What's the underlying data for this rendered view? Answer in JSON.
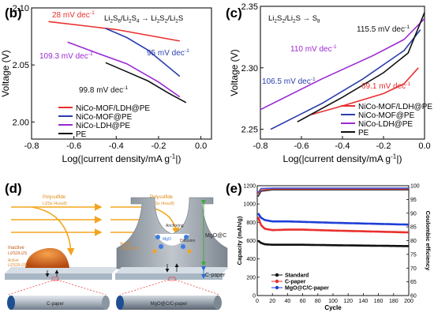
{
  "panels": {
    "b": "(b)",
    "c": "(c)",
    "d": "(d)",
    "e": "(e)"
  },
  "chart_data": [
    {
      "id": "b",
      "type": "line",
      "title": "Li2S6/Li2S4 → Li2S2/Li2S",
      "title_parts": [
        "Li",
        "2",
        "S",
        "6",
        "/Li",
        "2",
        "S",
        "4",
        " → Li",
        "2",
        "S",
        "2",
        "/Li",
        "2",
        "S"
      ],
      "xlabel": "Log(|current density/mA g-1|)",
      "xlabel_parts": [
        "Log(|current density/mA g",
        "-1",
        "|)"
      ],
      "ylabel": "Voltage (V)",
      "xlim": [
        -0.8,
        0.05
      ],
      "ylim": [
        1.985,
        2.1
      ],
      "xticks": [
        -0.8,
        -0.6,
        -0.4,
        -0.2,
        0.0
      ],
      "xtick_labels": [
        "-0.8",
        "-0.6",
        "-0.4",
        "-0.2",
        "0.0"
      ],
      "yticks": [
        2.0,
        2.05,
        2.1
      ],
      "ytick_labels": [
        "2.00",
        "2.05",
        "2.10"
      ],
      "legend_position": "bottom-left",
      "series": [
        {
          "name": "NiCo-MOF/LDH@PE",
          "color": "#e8302f",
          "x": [
            -0.72,
            -0.4,
            -0.1
          ],
          "y": [
            2.088,
            2.081,
            2.071
          ]
        },
        {
          "name": "NiCo-MOF@PE",
          "color": "#2a3fae",
          "x": [
            -0.45,
            -0.35,
            -0.25,
            -0.1
          ],
          "y": [
            2.082,
            2.074,
            2.063,
            2.04
          ]
        },
        {
          "name": "NiCo-LDH@PE",
          "color": "#9a2ad1",
          "x": [
            -0.63,
            -0.5,
            -0.35,
            -0.2,
            -0.1
          ],
          "y": [
            2.07,
            2.061,
            2.051,
            2.035,
            2.022
          ]
        },
        {
          "name": "PE",
          "color": "#111111",
          "x": [
            -0.45,
            -0.35,
            -0.25,
            -0.15,
            -0.07
          ],
          "y": [
            2.052,
            2.044,
            2.036,
            2.025,
            2.017
          ]
        }
      ],
      "annotations": [
        {
          "text": "28 mV dec-1",
          "color": "#e8302f"
        },
        {
          "text": "95 mV dec-1",
          "color": "#2a3fae"
        },
        {
          "text": "109.3 mV dec-1",
          "color": "#9a2ad1"
        },
        {
          "text": "99.8 mV dec-1",
          "color": "#111111"
        }
      ]
    },
    {
      "id": "c",
      "type": "line",
      "title": "Li2S2/Li2S → S8",
      "title_parts": [
        "Li",
        "2",
        "S",
        "2",
        "/Li",
        "2",
        "S → S",
        "8"
      ],
      "xlabel": "Log(|current density/mA g-1|)",
      "xlabel_parts": [
        "Log(|current density/mA g",
        "-1",
        "|)"
      ],
      "ylabel": "Voltage (V)",
      "xlim": [
        -0.8,
        0.0
      ],
      "ylim": [
        2.242,
        2.35
      ],
      "xticks": [
        -0.8,
        -0.6,
        -0.4,
        -0.2,
        0.0
      ],
      "xtick_labels": [
        "-0.8",
        "-0.6",
        "-0.4",
        "-0.2",
        "0.0"
      ],
      "yticks": [
        2.25,
        2.3,
        2.35
      ],
      "ytick_labels": [
        "2.25",
        "2.30",
        "2.35"
      ],
      "legend_position": "bottom-right",
      "series": [
        {
          "name": "NiCo-MOF/LDH@PE",
          "color": "#e8302f",
          "x": [
            -0.55,
            -0.4,
            -0.2,
            -0.1,
            -0.03
          ],
          "y": [
            2.262,
            2.269,
            2.279,
            2.287,
            2.3
          ]
        },
        {
          "name": "NiCo-MOF@PE",
          "color": "#2a3fae",
          "x": [
            -0.75,
            -0.5,
            -0.3,
            -0.1,
            -0.02
          ],
          "y": [
            2.25,
            2.271,
            2.291,
            2.314,
            2.331
          ]
        },
        {
          "name": "NiCo-LDH@PE",
          "color": "#9a2ad1",
          "x": [
            -0.8,
            -0.5,
            -0.25,
            -0.1,
            0.0
          ],
          "y": [
            2.266,
            2.291,
            2.31,
            2.323,
            2.34
          ]
        },
        {
          "name": "PE",
          "color": "#111111",
          "x": [
            -0.62,
            -0.4,
            -0.2,
            -0.08,
            0.0
          ],
          "y": [
            2.256,
            2.276,
            2.296,
            2.312,
            2.345
          ]
        }
      ],
      "annotations": [
        {
          "text": "115.5 mV dec-1",
          "color": "#111111"
        },
        {
          "text": "110 mV dec-1",
          "color": "#9a2ad1"
        },
        {
          "text": "106.5 mV dec-1",
          "color": "#2a3fae"
        },
        {
          "text": "69.1 mV dec-1",
          "color": "#e8302f"
        }
      ]
    },
    {
      "id": "e",
      "type": "scatter",
      "xlabel": "Cycle",
      "ylabel": "Capacity (mAh/g)",
      "y2label": "Coulombic efficiency",
      "xlim": [
        0,
        200
      ],
      "ylim": [
        0,
        1200
      ],
      "y2lim": [
        60,
        100
      ],
      "xticks": [
        0,
        20,
        40,
        60,
        80,
        100,
        120,
        140,
        160,
        180,
        200
      ],
      "xtick_labels": [
        "0",
        "20",
        "40",
        "60",
        "80",
        "100",
        "120",
        "140",
        "160",
        "180",
        "200"
      ],
      "yticks": [
        0,
        200,
        400,
        600,
        800,
        1000,
        1200
      ],
      "ytick_labels": [
        "0",
        "200",
        "400",
        "600",
        "800",
        "1000",
        "1200"
      ],
      "y2ticks": [
        60,
        65,
        70,
        75,
        80,
        85,
        90,
        95,
        100
      ],
      "y2tick_labels": [
        "60",
        "65",
        "70",
        "75",
        "80",
        "85",
        "90",
        "95",
        "100"
      ],
      "legend_position": "bottom",
      "series": [
        {
          "name": "Standard",
          "color": "#111111",
          "capacity": [
            [
              1,
              600
            ],
            [
              5,
              575
            ],
            [
              10,
              560
            ],
            [
              20,
              555
            ],
            [
              40,
              555
            ],
            [
              60,
              555
            ],
            [
              100,
              550
            ],
            [
              150,
              545
            ],
            [
              200,
              540
            ]
          ],
          "ce": [
            [
              1,
              96
            ],
            [
              5,
              98
            ],
            [
              20,
              98.5
            ],
            [
              100,
              98.5
            ],
            [
              200,
              98.5
            ]
          ]
        },
        {
          "name": "C-paper",
          "color": "#e8302f",
          "capacity": [
            [
              1,
              860
            ],
            [
              5,
              770
            ],
            [
              10,
              730
            ],
            [
              20,
              715
            ],
            [
              40,
              720
            ],
            [
              60,
              720
            ],
            [
              100,
              710
            ],
            [
              150,
              700
            ],
            [
              200,
              690
            ]
          ],
          "ce": [
            [
              1,
              97
            ],
            [
              5,
              98.5
            ],
            [
              20,
              98.8
            ],
            [
              100,
              98.8
            ],
            [
              200,
              98.8
            ]
          ]
        },
        {
          "name": "MgO@C/C-paper",
          "color": "#1f3fd6",
          "capacity": [
            [
              1,
              900
            ],
            [
              5,
              850
            ],
            [
              10,
              825
            ],
            [
              20,
              810
            ],
            [
              40,
              810
            ],
            [
              60,
              805
            ],
            [
              100,
              795
            ],
            [
              150,
              785
            ],
            [
              200,
              775
            ]
          ],
          "ce": [
            [
              1,
              97.5
            ],
            [
              5,
              99
            ],
            [
              20,
              99.1
            ],
            [
              100,
              99.1
            ],
            [
              200,
              99.1
            ]
          ]
        }
      ]
    }
  ],
  "schematic": {
    "left": {
      "polysulfide": "Polysulfide",
      "polysulfide_sub": "Li2Sx (4≤x≤8)",
      "inactive": "Inactive",
      "inactive_species": "Li2S2/Li2S",
      "active": "Active",
      "active_species": "Li2S2/Li2S",
      "cylinder": "C-paper"
    },
    "right": {
      "polysulfide": "Polysulfide",
      "polysulfide_sub": "Li2Sx (4≤x≤8)",
      "active": "Active",
      "active_species": "Li2S2/Li2S",
      "anchoring": "Anchoring",
      "mgo": "MgO",
      "diffusion": "Diffusion",
      "cylinder": "MgO@C/C-paper"
    },
    "labels": {
      "mgo_c": "MgO@C",
      "c_paper": "C-paper"
    }
  }
}
